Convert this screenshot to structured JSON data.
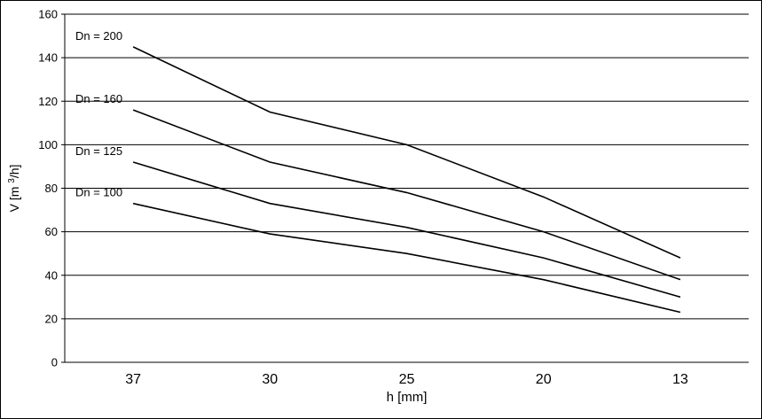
{
  "chart_data": {
    "type": "line",
    "x_categories": [
      "37",
      "30",
      "25",
      "20",
      "13"
    ],
    "xlabel": "h [mm]",
    "ylabel_parts": [
      "V [m ",
      "3",
      "/h]"
    ],
    "ylabel": "V [m³/h]",
    "ylim": [
      0,
      160
    ],
    "yticks": [
      0,
      20,
      40,
      60,
      80,
      100,
      120,
      140,
      160
    ],
    "grid": "horizontal-only",
    "legend_position": "inline-labels-left",
    "background": "#ffffff",
    "line_color": "#000000",
    "grid_color": "#000000",
    "series": [
      {
        "name": "Dn = 200",
        "values": [
          145,
          115,
          100,
          76,
          48
        ]
      },
      {
        "name": "Dn = 160",
        "values": [
          116,
          92,
          78,
          60,
          38
        ]
      },
      {
        "name": "Dn = 125",
        "values": [
          92,
          73,
          62,
          48,
          30
        ]
      },
      {
        "name": "Dn = 100",
        "values": [
          73,
          59,
          50,
          38,
          23
        ]
      }
    ]
  }
}
